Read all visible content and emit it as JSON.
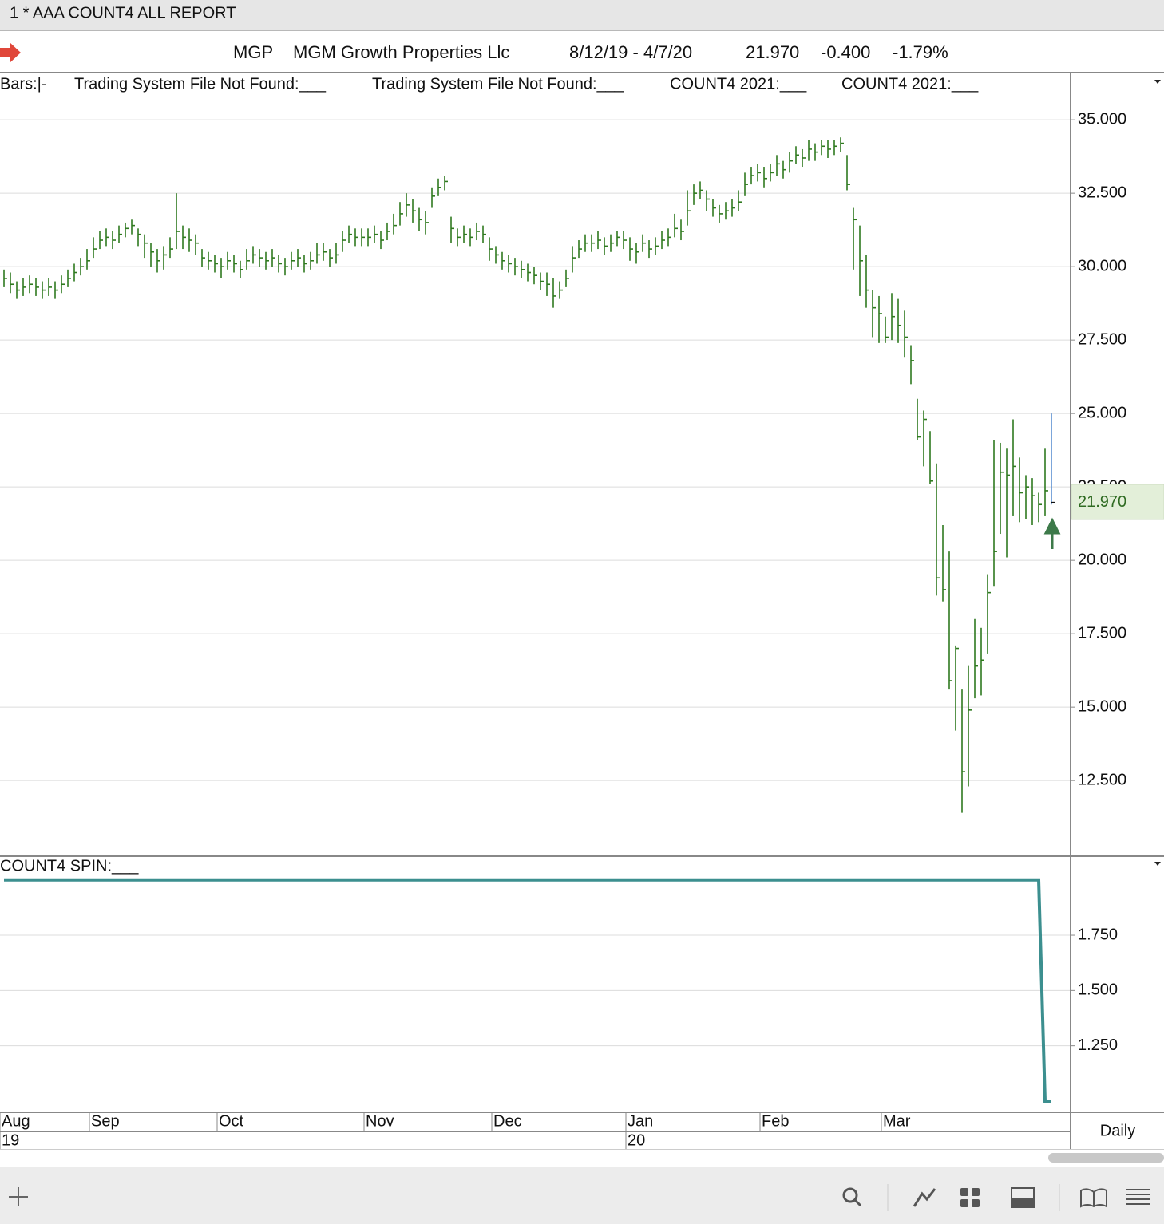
{
  "window": {
    "title": "1 * AAA COUNT4 ALL  REPORT"
  },
  "header": {
    "symbol": "MGP",
    "name": "MGM Growth Properties Llc",
    "date_range": "8/12/19 - 4/7/20",
    "last": "21.970",
    "change": "-0.400",
    "change_pct": "-1.79%"
  },
  "chart_data": [
    {
      "type": "hlc",
      "legend": [
        "Bars:|-",
        "Trading System File Not Found:___",
        "Trading System File Not Found:___",
        "COUNT4 2021:___",
        "COUNT4 2021:___"
      ],
      "color": "#2f7a1f",
      "last_color": "#5b8fd0",
      "grid": true,
      "categories": [
        "Aug",
        null,
        null,
        null,
        null,
        null,
        null,
        null,
        null,
        null,
        null,
        null,
        null,
        null,
        "Sep",
        null,
        null,
        null,
        null,
        null,
        null,
        null,
        null,
        null,
        null,
        null,
        null,
        null,
        null,
        null,
        null,
        null,
        null,
        null,
        "Oct",
        null,
        null,
        null,
        null,
        null,
        null,
        null,
        null,
        null,
        null,
        null,
        null,
        null,
        null,
        null,
        null,
        null,
        null,
        null,
        null,
        null,
        null,
        "Nov",
        null,
        null,
        null,
        null,
        null,
        null,
        null,
        null,
        null,
        null,
        null,
        null,
        null,
        null,
        null,
        null,
        null,
        null,
        null,
        "Dec",
        null,
        null,
        null,
        null,
        null,
        null,
        null,
        null,
        null,
        null,
        null,
        null,
        null,
        null,
        null,
        null,
        null,
        null,
        null,
        null,
        "Jan",
        null,
        null,
        null,
        null,
        null,
        null,
        null,
        null,
        null,
        null,
        null,
        null,
        null,
        null,
        null,
        null,
        null,
        null,
        null,
        null,
        "Feb",
        null,
        null,
        null,
        null,
        null,
        null,
        null,
        null,
        null,
        null,
        null,
        null,
        null,
        null,
        null,
        null,
        null,
        null,
        "Mar",
        null,
        null,
        null,
        null,
        null,
        null,
        null,
        null,
        null,
        null,
        null,
        null,
        null,
        null,
        null,
        null,
        null,
        null,
        null,
        null,
        null,
        null,
        null,
        null,
        null,
        null
      ],
      "category_years": [
        "19",
        null,
        null,
        null,
        null,
        null,
        null,
        null,
        null,
        null,
        null,
        null,
        null,
        null,
        null,
        null,
        null,
        null,
        null,
        null,
        null,
        null,
        null,
        null,
        null,
        null,
        null,
        null,
        null,
        null,
        null,
        null,
        null,
        null,
        null,
        null,
        null,
        null,
        null,
        null,
        null,
        null,
        null,
        null,
        null,
        null,
        null,
        null,
        null,
        null,
        null,
        null,
        null,
        null,
        null,
        null,
        null,
        null,
        null,
        null,
        null,
        null,
        null,
        null,
        null,
        null,
        null,
        null,
        null,
        null,
        null,
        null,
        null,
        null,
        null,
        null,
        null,
        null,
        null,
        null,
        null,
        null,
        null,
        null,
        null,
        null,
        null,
        null,
        null,
        null,
        null,
        null,
        null,
        null,
        null,
        null,
        null,
        null,
        "20",
        null,
        null,
        null,
        null,
        null,
        null,
        null,
        null,
        null,
        null,
        null,
        null,
        null,
        null,
        null,
        null,
        null,
        null,
        null,
        null,
        null,
        null,
        null,
        null,
        null,
        null,
        null,
        null,
        null,
        null,
        null,
        null,
        null,
        null,
        null,
        null,
        null,
        null,
        null,
        null,
        null,
        null,
        null,
        null,
        null,
        null,
        null,
        null,
        null,
        null,
        null,
        null,
        null,
        null,
        null,
        null,
        null,
        null,
        null,
        null,
        null,
        null,
        null,
        null,
        null,
        null
      ],
      "high": [
        29.9,
        29.8,
        29.5,
        29.6,
        29.7,
        29.6,
        29.5,
        29.6,
        29.5,
        29.7,
        29.9,
        30.1,
        30.3,
        30.6,
        31.0,
        31.2,
        31.3,
        31.2,
        31.4,
        31.5,
        31.6,
        31.3,
        31.1,
        30.8,
        30.6,
        30.7,
        31.0,
        32.5,
        31.4,
        31.3,
        31.1,
        30.6,
        30.5,
        30.4,
        30.3,
        30.5,
        30.4,
        30.2,
        30.6,
        30.7,
        30.6,
        30.5,
        30.6,
        30.4,
        30.3,
        30.5,
        30.6,
        30.4,
        30.5,
        30.8,
        30.8,
        30.6,
        30.8,
        31.2,
        31.4,
        31.3,
        31.3,
        31.3,
        31.4,
        31.2,
        31.5,
        31.8,
        32.2,
        32.5,
        32.3,
        32.0,
        31.9,
        32.7,
        33.0,
        33.1,
        31.7,
        31.3,
        31.4,
        31.3,
        31.5,
        31.4,
        31.0,
        30.7,
        30.5,
        30.4,
        30.3,
        30.2,
        30.1,
        30.0,
        29.8,
        29.8,
        29.6,
        29.5,
        29.9,
        30.7,
        30.9,
        31.1,
        31.1,
        31.2,
        31.0,
        31.1,
        31.2,
        31.2,
        31.0,
        30.8,
        31.1,
        30.9,
        31.0,
        31.2,
        31.3,
        31.8,
        31.6,
        32.6,
        32.8,
        32.9,
        32.6,
        32.3,
        32.1,
        32.2,
        32.3,
        32.6,
        33.2,
        33.4,
        33.5,
        33.4,
        33.5,
        33.8,
        33.6,
        33.9,
        34.1,
        34.0,
        34.3,
        34.2,
        34.3,
        34.3,
        34.3,
        34.4,
        33.8,
        32.0,
        31.4,
        30.4,
        29.2,
        29.0,
        28.3,
        29.1,
        28.9,
        28.5,
        27.3,
        25.5,
        25.1,
        24.4,
        23.3,
        21.2,
        20.3,
        17.1,
        15.6,
        16.4,
        18.0,
        17.7,
        19.5,
        24.1,
        24.0,
        23.8,
        24.8,
        23.5,
        22.9,
        22.8,
        22.3,
        23.8,
        25.0
      ],
      "low": [
        29.3,
        29.1,
        28.9,
        29.0,
        29.1,
        29.0,
        28.9,
        29.0,
        28.9,
        29.1,
        29.3,
        29.5,
        29.7,
        29.9,
        30.3,
        30.6,
        30.7,
        30.6,
        30.8,
        31.0,
        31.1,
        30.7,
        30.3,
        30.0,
        29.8,
        29.9,
        30.3,
        30.6,
        30.6,
        30.5,
        30.4,
        30.0,
        29.9,
        29.8,
        29.6,
        29.9,
        29.8,
        29.6,
        29.9,
        30.1,
        30.0,
        29.9,
        30.0,
        29.8,
        29.7,
        29.9,
        30.0,
        29.8,
        29.9,
        30.1,
        30.2,
        30.0,
        30.1,
        30.5,
        30.8,
        30.7,
        30.7,
        30.7,
        30.8,
        30.6,
        30.9,
        31.1,
        31.4,
        31.7,
        31.5,
        31.2,
        31.1,
        32.0,
        32.4,
        32.6,
        30.8,
        30.7,
        30.8,
        30.7,
        30.9,
        30.8,
        30.2,
        30.1,
        29.9,
        29.8,
        29.7,
        29.6,
        29.5,
        29.4,
        29.2,
        29.0,
        28.6,
        28.9,
        29.3,
        29.8,
        30.3,
        30.5,
        30.5,
        30.6,
        30.4,
        30.5,
        30.7,
        30.6,
        30.2,
        30.1,
        30.5,
        30.3,
        30.4,
        30.6,
        30.7,
        31.0,
        30.9,
        31.4,
        32.1,
        32.3,
        31.9,
        31.7,
        31.5,
        31.6,
        31.7,
        31.9,
        32.4,
        32.8,
        32.9,
        32.7,
        32.9,
        33.1,
        33.0,
        33.2,
        33.5,
        33.4,
        33.6,
        33.6,
        33.8,
        33.7,
        33.8,
        33.9,
        32.6,
        29.9,
        29.0,
        28.6,
        27.6,
        27.4,
        27.4,
        27.5,
        27.4,
        26.9,
        26.0,
        24.1,
        23.2,
        22.6,
        18.8,
        18.6,
        15.6,
        14.2,
        11.4,
        12.3,
        15.3,
        15.4,
        16.8,
        19.1,
        20.9,
        20.1,
        21.5,
        21.3,
        21.4,
        21.2,
        21.3,
        21.5,
        21.9
      ],
      "close": [
        29.6,
        29.4,
        29.2,
        29.3,
        29.4,
        29.3,
        29.2,
        29.3,
        29.2,
        29.4,
        29.6,
        29.8,
        30.0,
        30.2,
        30.6,
        30.9,
        31.0,
        30.9,
        31.1,
        31.3,
        31.4,
        31.1,
        30.8,
        30.5,
        30.2,
        30.4,
        30.6,
        31.2,
        31.0,
        30.9,
        30.8,
        30.3,
        30.2,
        30.1,
        30.0,
        30.2,
        30.1,
        29.9,
        30.2,
        30.4,
        30.3,
        30.2,
        30.3,
        30.1,
        30.0,
        30.2,
        30.3,
        30.1,
        30.2,
        30.4,
        30.5,
        30.3,
        30.4,
        30.9,
        31.1,
        31.0,
        31.0,
        31.0,
        31.1,
        30.9,
        31.2,
        31.4,
        31.8,
        32.1,
        31.9,
        31.6,
        31.5,
        32.4,
        32.7,
        32.9,
        31.3,
        31.0,
        31.1,
        31.0,
        31.2,
        31.1,
        30.6,
        30.4,
        30.2,
        30.1,
        30.0,
        29.9,
        29.8,
        29.7,
        29.5,
        29.4,
        29.0,
        29.2,
        29.6,
        30.3,
        30.6,
        30.8,
        30.8,
        30.9,
        30.7,
        30.8,
        31.0,
        30.9,
        30.6,
        30.5,
        30.8,
        30.6,
        30.7,
        30.9,
        31.0,
        31.3,
        31.2,
        31.9,
        32.5,
        32.6,
        32.3,
        32.0,
        31.8,
        31.9,
        32.0,
        32.2,
        32.8,
        33.1,
        33.2,
        33.0,
        33.2,
        33.5,
        33.3,
        33.6,
        33.8,
        33.7,
        34.0,
        33.9,
        34.1,
        34.0,
        34.1,
        34.2,
        32.8,
        31.6,
        30.2,
        29.2,
        28.6,
        28.4,
        27.6,
        28.3,
        28.0,
        27.6,
        26.8,
        24.2,
        24.8,
        22.7,
        19.4,
        19.0,
        15.9,
        17.0,
        12.8,
        14.9,
        16.4,
        16.6,
        18.9,
        20.3,
        23.0,
        22.9,
        23.2,
        22.3,
        22.5,
        22.2,
        21.9,
        22.37,
        21.97
      ],
      "last_price": {
        "value": 21.97,
        "label": "21.970"
      },
      "ylim": [
        9.95,
        36.58
      ],
      "yticks": [
        {
          "value": 12.5,
          "label": "12.500"
        },
        {
          "value": 15,
          "label": "15.000"
        },
        {
          "value": 17.5,
          "label": "17.500"
        },
        {
          "value": 20,
          "label": "20.000"
        },
        {
          "value": 22.5,
          "label": "22.500"
        },
        {
          "value": 25,
          "label": "25.000"
        },
        {
          "value": 27.5,
          "label": "27.500"
        },
        {
          "value": 30,
          "label": "30.000"
        },
        {
          "value": 32.5,
          "label": "32.500"
        },
        {
          "value": 35,
          "label": "35.000"
        }
      ]
    },
    {
      "type": "line",
      "title": "COUNT4 SPIN:___",
      "color": "#3c8f8f",
      "grid": true,
      "values": [
        2,
        2,
        2,
        2,
        2,
        2,
        2,
        2,
        2,
        2,
        2,
        2,
        2,
        2,
        2,
        2,
        2,
        2,
        2,
        2,
        2,
        2,
        2,
        2,
        2,
        2,
        2,
        2,
        2,
        2,
        2,
        2,
        2,
        2,
        2,
        2,
        2,
        2,
        2,
        2,
        2,
        2,
        2,
        2,
        2,
        2,
        2,
        2,
        2,
        2,
        2,
        2,
        2,
        2,
        2,
        2,
        2,
        2,
        2,
        2,
        2,
        2,
        2,
        2,
        2,
        2,
        2,
        2,
        2,
        2,
        2,
        2,
        2,
        2,
        2,
        2,
        2,
        2,
        2,
        2,
        2,
        2,
        2,
        2,
        2,
        2,
        2,
        2,
        2,
        2,
        2,
        2,
        2,
        2,
        2,
        2,
        2,
        2,
        2,
        2,
        2,
        2,
        2,
        2,
        2,
        2,
        2,
        2,
        2,
        2,
        2,
        2,
        2,
        2,
        2,
        2,
        2,
        2,
        2,
        2,
        2,
        2,
        2,
        2,
        2,
        2,
        2,
        2,
        2,
        2,
        2,
        2,
        2,
        2,
        2,
        2,
        2,
        2,
        2,
        2,
        2,
        2,
        2,
        2,
        2,
        2,
        2,
        2,
        2,
        2,
        2,
        2,
        2,
        2,
        2,
        2,
        2,
        2,
        2,
        2,
        2,
        2,
        2,
        1,
        1
      ],
      "ylim": [
        0.953,
        2.1
      ],
      "yticks": [
        {
          "value": 1.25,
          "label": "1.250"
        },
        {
          "value": 1.5,
          "label": "1.500"
        },
        {
          "value": 1.75,
          "label": "1.750"
        }
      ]
    }
  ],
  "footer": {
    "period": "Daily"
  }
}
